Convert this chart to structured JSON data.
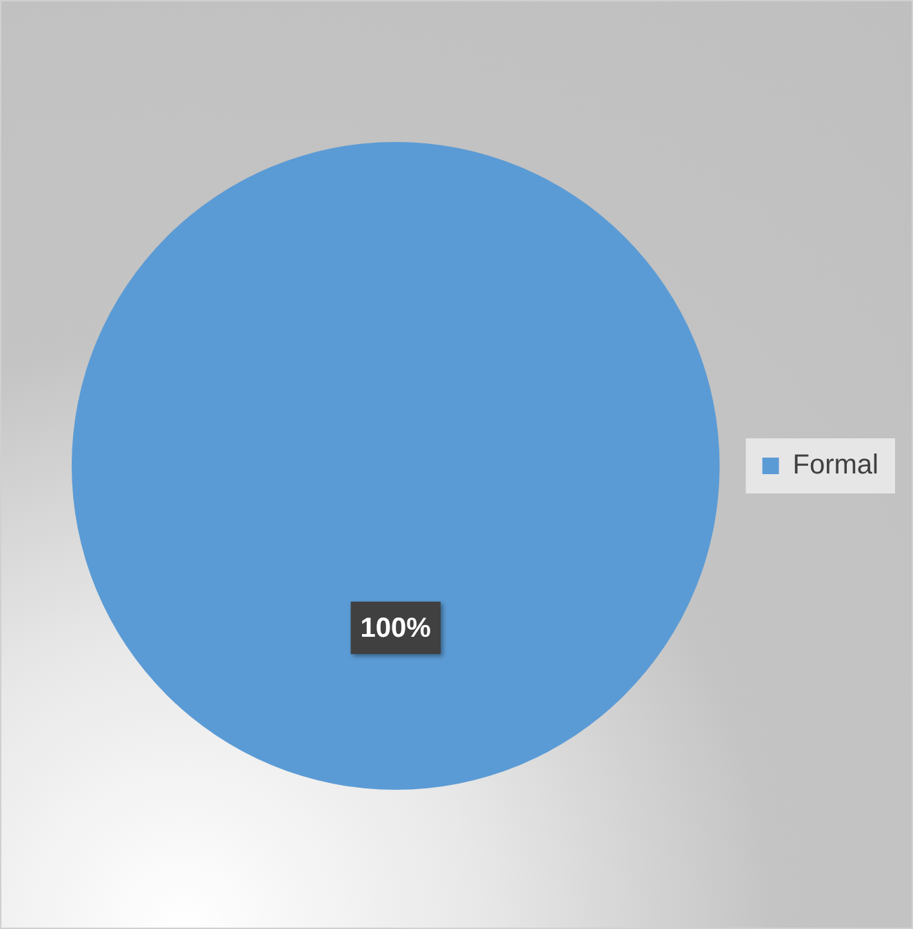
{
  "chart_data": {
    "type": "pie",
    "categories": [
      "Formal"
    ],
    "values": [
      100
    ],
    "colors": [
      "#5b9bd5"
    ],
    "legend": "right",
    "value_labels": [
      "100%"
    ]
  }
}
